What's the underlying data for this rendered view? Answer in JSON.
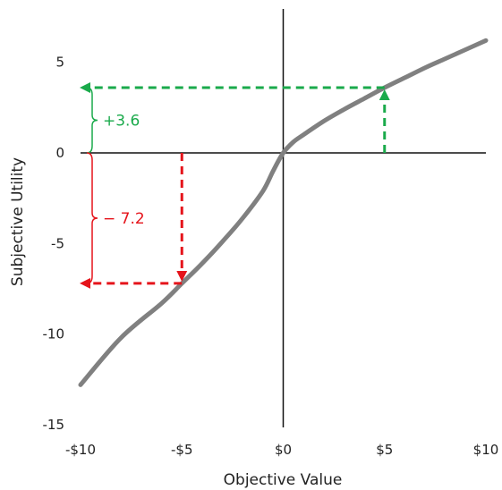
{
  "chart_data": {
    "type": "line",
    "title": "",
    "xlabel": "Objective Value",
    "ylabel": "Subjective Utility",
    "xlim": [
      -10,
      10
    ],
    "ylim": [
      -15,
      7.5
    ],
    "x_ticks": [
      {
        "value": -10,
        "label": "-$10"
      },
      {
        "value": -5,
        "label": "-$5"
      },
      {
        "value": 0,
        "label": "$0"
      },
      {
        "value": 5,
        "label": "$5"
      },
      {
        "value": 10,
        "label": "$10"
      }
    ],
    "y_ticks": [
      {
        "value": 5,
        "label": "5"
      },
      {
        "value": 0,
        "label": "0"
      },
      {
        "value": -5,
        "label": "-5"
      },
      {
        "value": -10,
        "label": "-10"
      },
      {
        "value": -15,
        "label": "-15"
      }
    ],
    "series": [
      {
        "color": "#808080",
        "x": [
          -10,
          -8,
          -6,
          -5,
          -4,
          -3,
          -2,
          -1,
          -0.5,
          0,
          0.5,
          1,
          2,
          3,
          4,
          5,
          6,
          7,
          8,
          9,
          10
        ],
        "y": [
          -12.8,
          -10.2,
          -8.3,
          -7.2,
          -6.1,
          -4.9,
          -3.6,
          -2.1,
          -1.0,
          0,
          0.6,
          1.0,
          1.75,
          2.4,
          3.0,
          3.6,
          4.15,
          4.7,
          5.2,
          5.7,
          6.2
        ]
      }
    ],
    "annotations": [
      {
        "name": "gain",
        "label": "+3.6",
        "x": 5,
        "y": 3.6,
        "color": "#1aaa4b"
      },
      {
        "name": "loss",
        "label": "− 7.2",
        "x": -5,
        "y": -7.2,
        "color": "#e5141b"
      }
    ],
    "grid": false,
    "legend": "none"
  }
}
